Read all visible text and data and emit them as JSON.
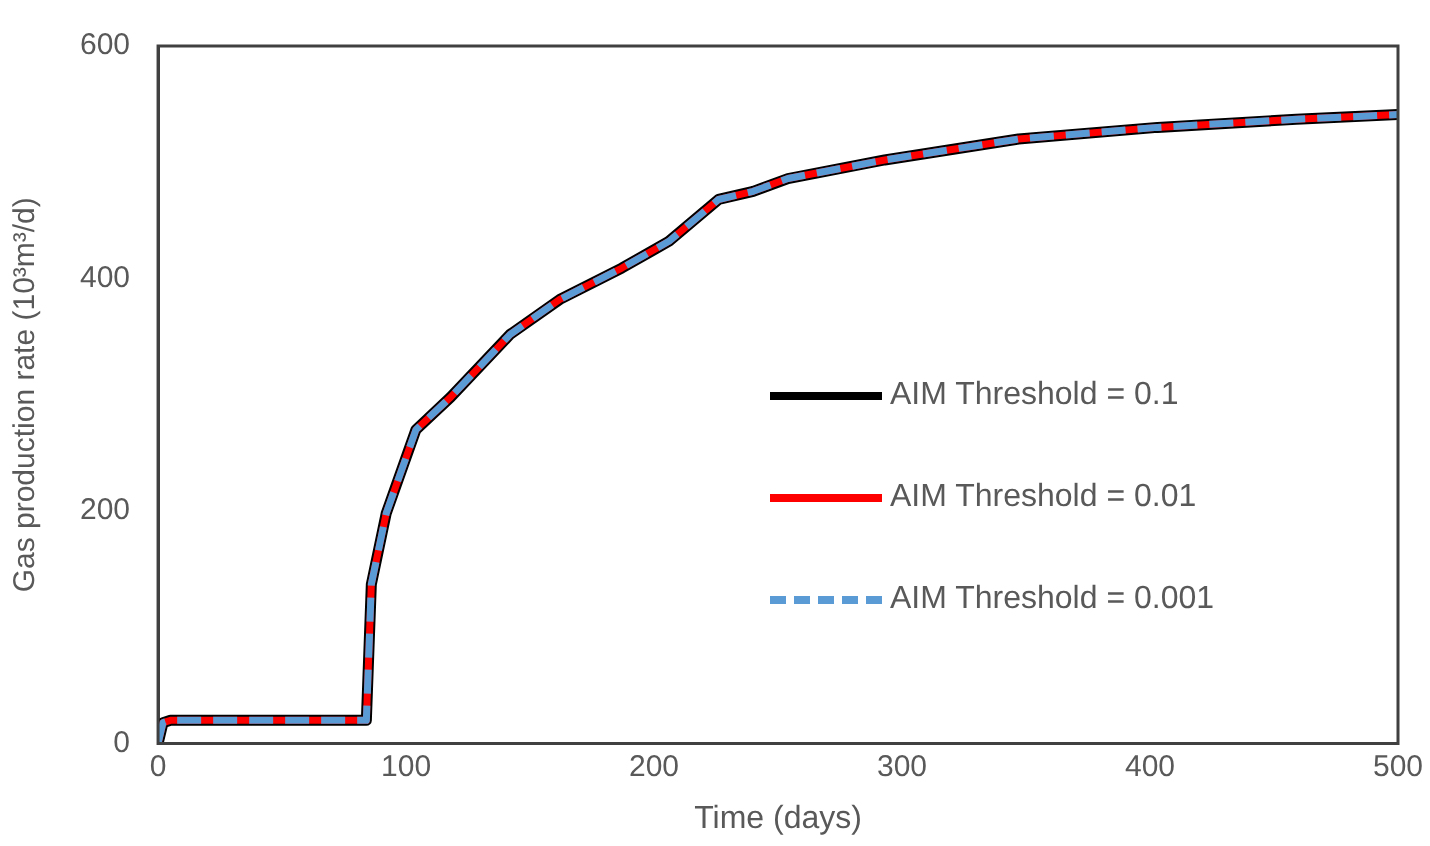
{
  "chart_data": {
    "type": "line",
    "xlabel": "Time (days)",
    "ylabel": "Gas production rate (10³m³/d)",
    "xlim": [
      0,
      500
    ],
    "xticks": [
      0,
      100,
      200,
      300,
      400,
      500
    ],
    "ylim": [
      0,
      600
    ],
    "yticks": [
      0,
      200,
      400,
      600
    ],
    "grid": false,
    "legend": "right",
    "marker": "none",
    "x": [
      0,
      2,
      5,
      84,
      86,
      92,
      104,
      118,
      142,
      162,
      187,
      206,
      226,
      240,
      254,
      293,
      347,
      403,
      459,
      500
    ],
    "series": [
      {
        "name": "AIM Threshold = 0.1",
        "color": "#000000",
        "line_style": "solid",
        "values": [
          0,
          18,
          20,
          20,
          137,
          198,
          270,
          298,
          352,
          382,
          409,
          432,
          468,
          475,
          486,
          502,
          520,
          530,
          537,
          541
        ]
      },
      {
        "name": "AIM Threshold = 0.01",
        "color": "#ff0000",
        "line_style": "solid",
        "values": [
          0,
          18,
          20,
          20,
          137,
          198,
          270,
          298,
          352,
          382,
          409,
          432,
          468,
          475,
          486,
          502,
          520,
          530,
          537,
          541
        ]
      },
      {
        "name": "AIM Threshold = 0.001",
        "color": "#5b9bd5",
        "line_style": "dashed",
        "values": [
          0,
          18,
          20,
          20,
          137,
          198,
          270,
          298,
          352,
          382,
          409,
          432,
          468,
          475,
          486,
          502,
          520,
          530,
          537,
          541
        ]
      }
    ]
  }
}
